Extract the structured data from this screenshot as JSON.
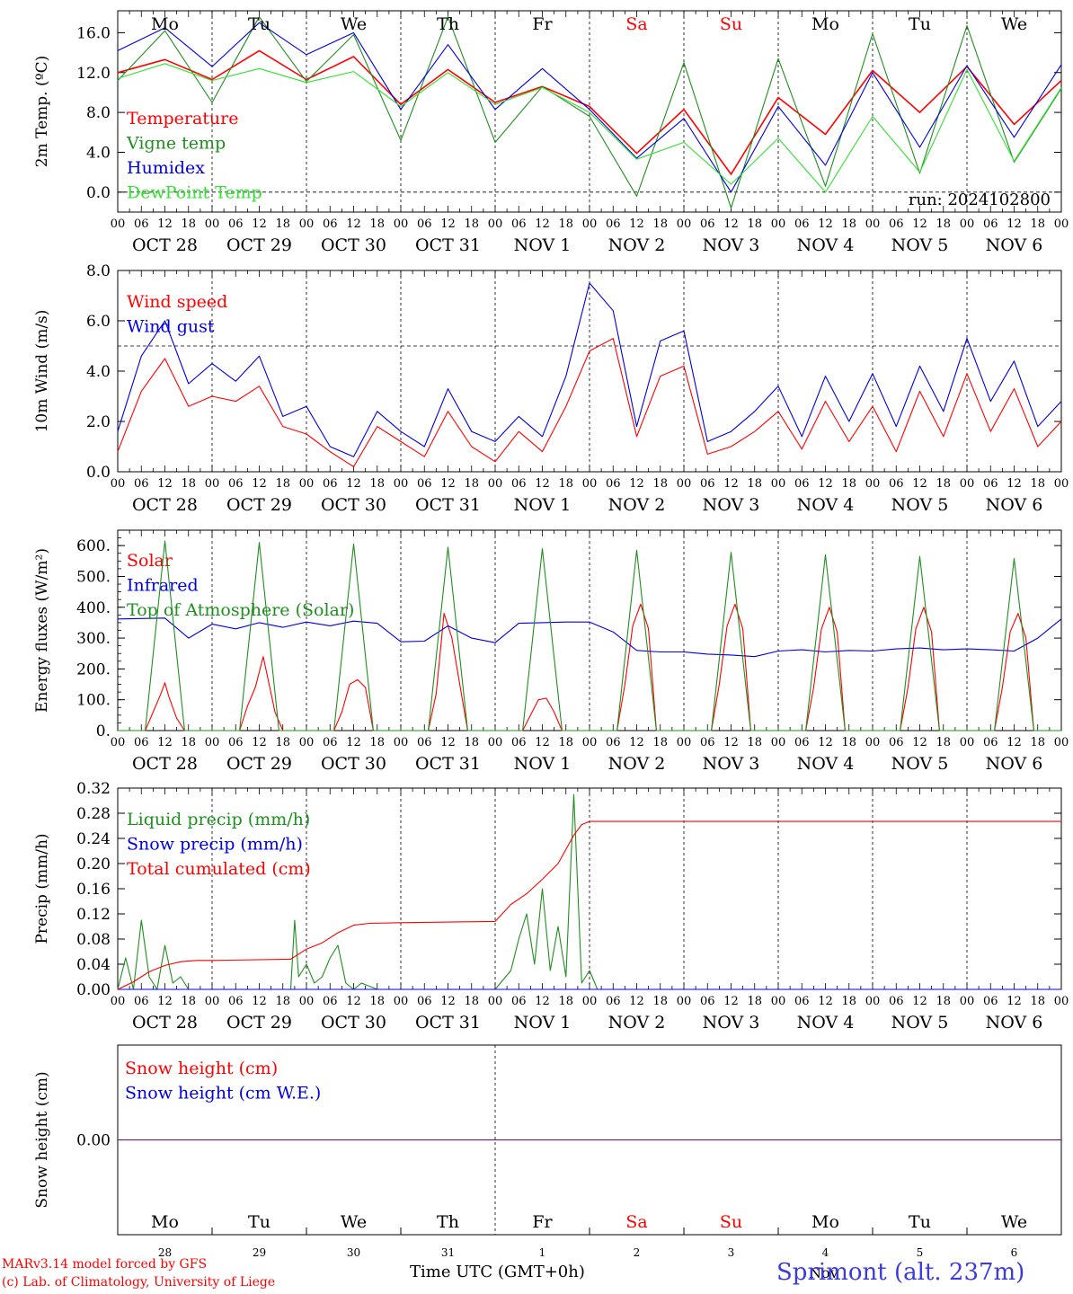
{
  "colors": {
    "red": "#ff0000",
    "green": "#1f8f1f",
    "blue": "#0000e0",
    "lightgreen": "#33e033",
    "purple": "#7f007f",
    "weekend": "#ff0000"
  },
  "axis": {
    "hour_ticks": [
      "00",
      "06",
      "12",
      "18"
    ],
    "day_labels": [
      "OCT 28",
      "OCT 29",
      "OCT 30",
      "OCT 31",
      "NOV  1",
      "NOV  2",
      "NOV  3",
      "NOV  4",
      "NOV  5",
      "NOV  6"
    ],
    "weekdays": [
      "Mo",
      "Tu",
      "We",
      "Th",
      "Fr",
      "Sa",
      "Su",
      "Mo",
      "Tu",
      "We"
    ],
    "weekend_flags": [
      false,
      false,
      false,
      false,
      false,
      true,
      true,
      false,
      false,
      false
    ],
    "day_numbers": [
      "28",
      "29",
      "30",
      "31",
      "1",
      "2",
      "3",
      "4",
      "5",
      "6"
    ],
    "n_days": 10
  },
  "footer": {
    "credit_line_1": "MARv3.14 model forced by GFS",
    "credit_line_2": "(c) Lab. of Climatology, University of Liege",
    "time_label": "Time UTC (GMT+0h)",
    "station": "Sprimont (alt. 237m)",
    "month_label": "Nov"
  },
  "chart_data": [
    {
      "id": "temp",
      "type": "line",
      "ylabel": "2m Temp. (ºC)",
      "ylim": [
        -2.0,
        18.2
      ],
      "yticks": [
        0,
        4,
        8,
        12,
        16
      ],
      "ytick_labels": [
        "0.0",
        "4.0",
        "8.0",
        "12.0",
        "16.0"
      ],
      "refline": 0,
      "annotation": "run: 2024102800",
      "series": [
        {
          "name": "Temperature",
          "color": "#ff0000",
          "x": [
            0,
            12,
            24,
            36,
            48,
            60,
            72,
            84,
            96,
            108,
            120,
            132,
            144,
            156,
            168,
            180,
            192,
            204,
            216,
            228,
            240
          ],
          "y": [
            12.0,
            13.3,
            11.3,
            14.2,
            11.3,
            13.6,
            8.8,
            12.3,
            9.0,
            10.6,
            8.6,
            3.9,
            8.3,
            1.8,
            9.5,
            5.8,
            12.2,
            8.0,
            12.6,
            6.8,
            11.2
          ]
        },
        {
          "name": "Vigne temp",
          "color": "#1f8f1f",
          "x": [
            0,
            12,
            24,
            36,
            48,
            60,
            72,
            84,
            96,
            108,
            120,
            132,
            144,
            156,
            168,
            180,
            192,
            204,
            216,
            228,
            240
          ],
          "y": [
            11.2,
            16.2,
            9.0,
            17.6,
            11.1,
            15.8,
            5.2,
            17.6,
            5.0,
            10.6,
            7.6,
            -0.4,
            13.0,
            -1.6,
            13.4,
            0.6,
            15.9,
            1.9,
            16.7,
            3.0,
            10.4
          ]
        },
        {
          "name": "Humidex",
          "color": "#0000e0",
          "x": [
            0,
            12,
            24,
            36,
            48,
            60,
            72,
            84,
            96,
            108,
            120,
            132,
            144,
            156,
            168,
            180,
            192,
            204,
            216,
            228,
            240
          ],
          "y": [
            14.2,
            16.5,
            12.6,
            17.0,
            13.8,
            16.0,
            8.3,
            14.8,
            8.3,
            12.4,
            8.3,
            3.4,
            7.4,
            0.0,
            8.6,
            2.7,
            12.0,
            4.5,
            12.7,
            5.5,
            12.8
          ]
        },
        {
          "name": "DewPoint Temp",
          "color": "#33e033",
          "x": [
            0,
            12,
            24,
            36,
            48,
            60,
            72,
            84,
            96,
            108,
            120,
            132,
            144,
            156,
            168,
            180,
            192,
            204,
            216,
            228,
            240
          ],
          "y": [
            11.4,
            12.9,
            11.2,
            12.4,
            11.0,
            12.1,
            8.6,
            12.0,
            8.8,
            10.5,
            8.0,
            3.3,
            5.0,
            0.8,
            5.4,
            0.0,
            7.6,
            2.0,
            12.3,
            3.1,
            10.5
          ]
        }
      ]
    },
    {
      "id": "wind",
      "type": "line",
      "ylabel": "10m Wind (m/s)",
      "ylim": [
        0,
        8
      ],
      "yticks": [
        0,
        2,
        4,
        6,
        8
      ],
      "ytick_labels": [
        "0.0",
        "2.0",
        "4.0",
        "6.0",
        "8.0"
      ],
      "refline": 5,
      "series": [
        {
          "name": "Wind speed",
          "color": "#ff0000",
          "x": [
            0,
            6,
            12,
            18,
            24,
            30,
            36,
            42,
            48,
            54,
            60,
            66,
            72,
            78,
            84,
            90,
            96,
            102,
            108,
            114,
            120,
            126,
            132,
            138,
            144,
            150,
            156,
            162,
            168,
            174,
            180,
            186,
            192,
            198,
            204,
            210,
            216,
            222,
            228,
            234,
            240
          ],
          "y": [
            0.8,
            3.2,
            4.5,
            2.6,
            3.0,
            2.8,
            3.4,
            1.8,
            1.5,
            0.8,
            0.2,
            1.8,
            1.2,
            0.6,
            2.4,
            1.0,
            0.4,
            1.6,
            0.8,
            2.6,
            4.8,
            5.3,
            1.4,
            3.8,
            4.2,
            0.7,
            1.0,
            1.6,
            2.4,
            0.9,
            2.8,
            1.2,
            2.6,
            0.8,
            3.2,
            1.4,
            3.9,
            1.6,
            3.3,
            1.0,
            2.0
          ]
        },
        {
          "name": "Wind gust",
          "color": "#0000e0",
          "x": [
            0,
            6,
            12,
            18,
            24,
            30,
            36,
            42,
            48,
            54,
            60,
            66,
            72,
            78,
            84,
            90,
            96,
            102,
            108,
            114,
            120,
            126,
            132,
            138,
            144,
            150,
            156,
            162,
            168,
            174,
            180,
            186,
            192,
            198,
            204,
            210,
            216,
            222,
            228,
            234,
            240
          ],
          "y": [
            1.6,
            4.6,
            6.0,
            3.5,
            4.3,
            3.6,
            4.6,
            2.2,
            2.6,
            1.0,
            0.6,
            2.4,
            1.6,
            1.0,
            3.3,
            1.6,
            1.2,
            2.2,
            1.4,
            3.8,
            7.5,
            6.4,
            1.8,
            5.2,
            5.6,
            1.2,
            1.6,
            2.4,
            3.4,
            1.4,
            3.8,
            2.0,
            3.9,
            1.8,
            4.2,
            2.4,
            5.3,
            2.8,
            4.4,
            1.8,
            2.8
          ]
        }
      ]
    },
    {
      "id": "energy",
      "type": "line",
      "ylabel": "Energy fluxes (W/m²)",
      "ylim": [
        0,
        650
      ],
      "yticks": [
        0,
        100,
        200,
        300,
        400,
        500,
        600
      ],
      "ytick_labels": [
        "0.",
        "100.",
        "200.",
        "300.",
        "400.",
        "500.",
        "600."
      ],
      "refline": null,
      "series": [
        {
          "name": "Solar",
          "color": "#ff0000",
          "x": [
            0,
            7,
            9,
            11,
            12,
            13,
            15,
            17,
            24,
            31,
            33,
            35,
            37,
            38,
            40,
            42,
            48,
            55,
            57,
            59,
            61,
            63,
            65,
            72,
            79,
            81,
            83,
            85,
            87,
            89,
            96,
            103,
            105,
            107,
            109,
            111,
            113,
            120,
            127,
            129,
            131,
            133,
            135,
            137,
            144,
            151,
            153,
            155,
            157,
            159,
            161,
            168,
            175,
            177,
            179,
            181,
            183,
            185,
            192,
            199,
            201,
            203,
            205,
            207,
            209,
            216,
            223,
            225,
            227,
            229,
            231,
            233,
            240
          ],
          "y": [
            0,
            0,
            60,
            120,
            155,
            110,
            40,
            0,
            0,
            0,
            80,
            140,
            240,
            180,
            60,
            0,
            0,
            0,
            60,
            150,
            165,
            140,
            0,
            0,
            0,
            120,
            380,
            300,
            150,
            0,
            0,
            0,
            50,
            100,
            105,
            60,
            0,
            0,
            0,
            150,
            340,
            410,
            330,
            0,
            0,
            0,
            150,
            340,
            410,
            330,
            0,
            0,
            0,
            140,
            330,
            400,
            320,
            0,
            0,
            0,
            140,
            330,
            400,
            320,
            0,
            0,
            0,
            140,
            320,
            380,
            300,
            0,
            0
          ]
        },
        {
          "name": "Infrared",
          "color": "#0000e0",
          "x": [
            0,
            12,
            18,
            24,
            30,
            36,
            42,
            48,
            54,
            60,
            66,
            72,
            78,
            84,
            90,
            96,
            102,
            108,
            114,
            120,
            126,
            132,
            138,
            144,
            150,
            156,
            162,
            168,
            174,
            180,
            186,
            192,
            198,
            204,
            210,
            216,
            222,
            228,
            234,
            240
          ],
          "y": [
            362,
            365,
            300,
            345,
            330,
            350,
            335,
            352,
            340,
            355,
            348,
            288,
            290,
            340,
            300,
            285,
            348,
            350,
            352,
            352,
            320,
            260,
            255,
            255,
            248,
            245,
            240,
            258,
            262,
            255,
            260,
            258,
            265,
            268,
            262,
            265,
            262,
            258,
            300,
            362
          ]
        },
        {
          "name": "Top of Atmosphere (Solar)",
          "color": "#1f8f1f",
          "x": [
            0,
            7,
            12,
            17,
            24,
            31,
            36,
            41,
            48,
            55,
            60,
            65,
            72,
            79,
            84,
            89,
            96,
            103,
            108,
            113,
            120,
            127,
            132,
            137,
            144,
            151,
            156,
            161,
            168,
            175,
            180,
            185,
            192,
            199,
            204,
            209,
            216,
            223,
            228,
            233,
            240
          ],
          "y": [
            0,
            0,
            615,
            0,
            0,
            0,
            610,
            0,
            0,
            0,
            605,
            0,
            0,
            0,
            595,
            0,
            0,
            0,
            590,
            0,
            0,
            0,
            585,
            0,
            0,
            0,
            578,
            0,
            0,
            0,
            570,
            0,
            0,
            0,
            565,
            0,
            0,
            0,
            558,
            0,
            0
          ]
        }
      ]
    },
    {
      "id": "precip",
      "type": "line",
      "ylabel": "Precip (mm/h)",
      "ylim": [
        0,
        0.32
      ],
      "yticks": [
        0,
        0.04,
        0.08,
        0.12,
        0.16,
        0.2,
        0.24,
        0.28,
        0.32
      ],
      "ytick_labels": [
        "0.00",
        "0.04",
        "0.08",
        "0.12",
        "0.16",
        "0.20",
        "0.24",
        "0.28",
        "0.32"
      ],
      "refline": null,
      "series": [
        {
          "name": "Liquid precip (mm/h)",
          "color": "#1f8f1f",
          "x": [
            0,
            2,
            4,
            6,
            8,
            10,
            12,
            14,
            16,
            18,
            20,
            24,
            44,
            45,
            46,
            48,
            50,
            52,
            54,
            56,
            58,
            60,
            62,
            66,
            72,
            96,
            100,
            102,
            104,
            106,
            108,
            110,
            112,
            114,
            116,
            118,
            120,
            122,
            124
          ],
          "y": [
            0,
            0.05,
            0,
            0.11,
            0.02,
            0,
            0.07,
            0.01,
            0.02,
            0,
            0,
            0,
            0,
            0.11,
            0.02,
            0.04,
            0.01,
            0.02,
            0.05,
            0.07,
            0.01,
            0,
            0.01,
            0,
            0,
            0,
            0.03,
            0.08,
            0.12,
            0.04,
            0.16,
            0.03,
            0.1,
            0.02,
            0.31,
            0.01,
            0.03,
            0,
            0
          ]
        },
        {
          "name": "Snow precip (mm/h)",
          "color": "#0000e0",
          "x": [
            0,
            240
          ],
          "y": [
            0,
            0
          ]
        },
        {
          "name": "Total cumulated (cm)",
          "color": "#ff0000",
          "x": [
            0,
            4,
            8,
            12,
            16,
            20,
            24,
            44,
            48,
            52,
            56,
            60,
            64,
            72,
            96,
            100,
            104,
            108,
            112,
            116,
            118,
            120,
            124,
            240
          ],
          "y": [
            0,
            0.012,
            0.028,
            0.038,
            0.044,
            0.046,
            0.046,
            0.048,
            0.064,
            0.074,
            0.09,
            0.102,
            0.105,
            0.106,
            0.108,
            0.135,
            0.152,
            0.175,
            0.2,
            0.245,
            0.262,
            0.267,
            0.267,
            0.267
          ]
        }
      ]
    },
    {
      "id": "snow",
      "type": "line",
      "ylabel": "Snow height (cm)",
      "ylim": [
        -1,
        1
      ],
      "yticks": [
        0
      ],
      "ytick_labels": [
        "0.00"
      ],
      "refline": null,
      "series": [
        {
          "name": "Snow height (cm)",
          "color": "#ff0000",
          "x": [
            0,
            240
          ],
          "y": [
            0,
            0
          ]
        },
        {
          "name": "Snow height (cm W.E.)",
          "color": "#0000e0",
          "x": [
            0,
            240
          ],
          "y": [
            0,
            0
          ]
        }
      ]
    }
  ]
}
